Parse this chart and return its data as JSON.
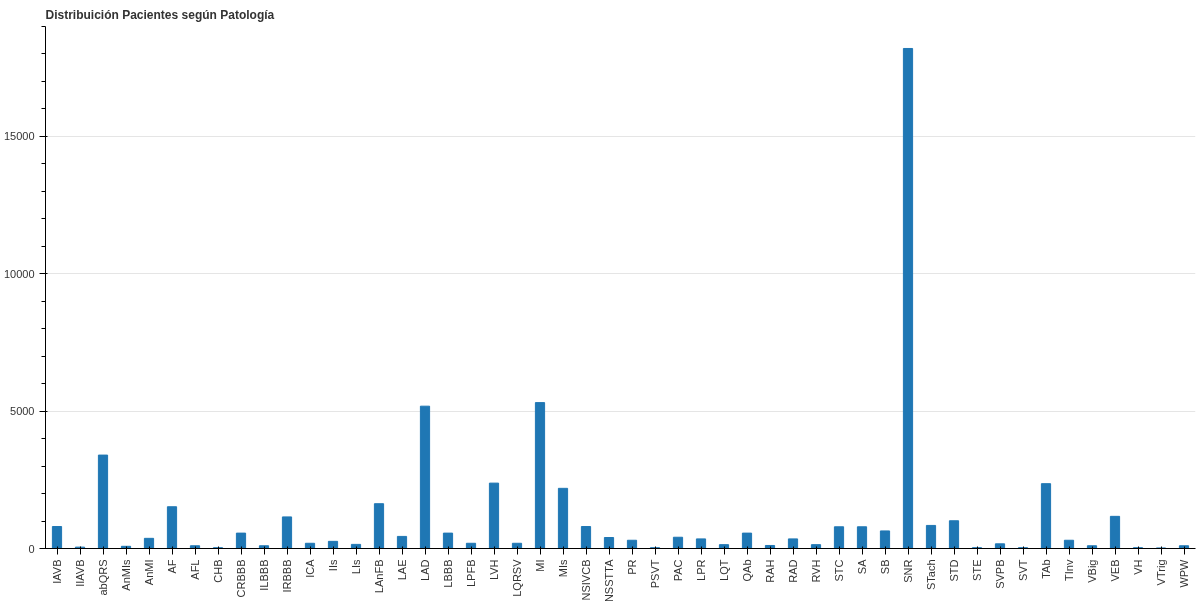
{
  "chart_data": {
    "type": "bar",
    "title": "Distribuición Pacientes según Patología",
    "categories": [
      "IAVB",
      "IIAVB",
      "abQRS",
      "AnMIs",
      "AnMI",
      "AF",
      "AFL",
      "CHB",
      "CRBBB",
      "ILBBB",
      "IRBBB",
      "ICA",
      "IIs",
      "LIs",
      "LAnFB",
      "LAE",
      "LAD",
      "LBBB",
      "LPFB",
      "LVH",
      "LQRSV",
      "MI",
      "MIs",
      "NSIVCB",
      "NSSTTA",
      "PR",
      "PSVT",
      "PAC",
      "LPR",
      "LQT",
      "QAb",
      "RAH",
      "RAD",
      "RVH",
      "STC",
      "SA",
      "SB",
      "SNR",
      "STach",
      "STD",
      "STE",
      "SVPB",
      "SVT",
      "TAb",
      "TInv",
      "VBig",
      "VEB",
      "VH",
      "VTrig",
      "WPW"
    ],
    "values": [
      800,
      50,
      3400,
      80,
      370,
      1520,
      100,
      30,
      560,
      100,
      1150,
      190,
      260,
      150,
      1630,
      440,
      5180,
      560,
      190,
      2380,
      190,
      5310,
      2190,
      800,
      400,
      300,
      30,
      410,
      350,
      140,
      560,
      110,
      350,
      140,
      790,
      790,
      640,
      18200,
      840,
      1010,
      30,
      170,
      30,
      2360,
      300,
      100,
      1170,
      30,
      20,
      100
    ],
    "color": "#1f77b4",
    "ylim": [
      0,
      19000
    ],
    "yticks": [
      0,
      5000,
      10000,
      15000
    ],
    "grid": "y"
  }
}
